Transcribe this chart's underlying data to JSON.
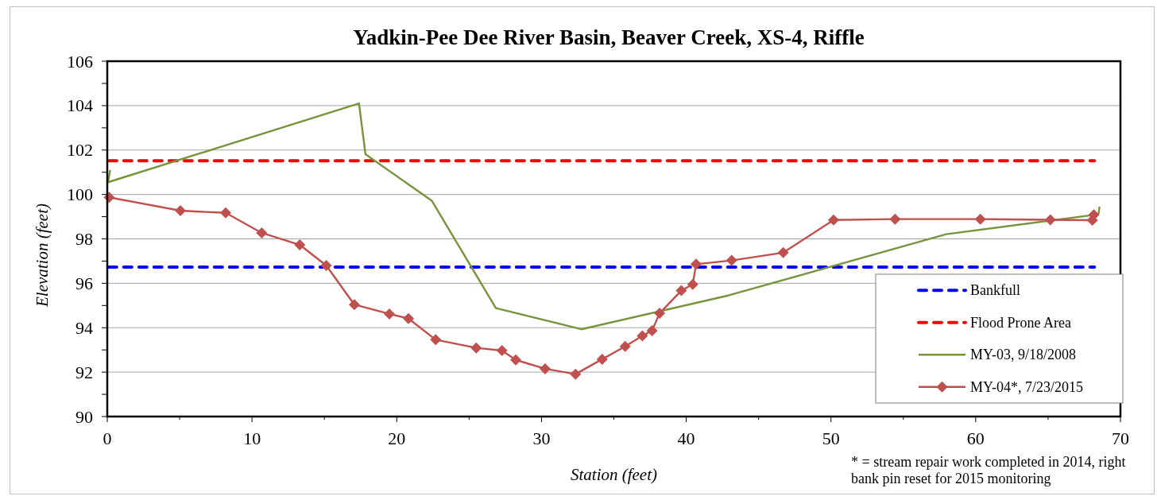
{
  "chart_data": {
    "type": "line",
    "title": "Yadkin-Pee Dee River Basin, Beaver Creek, XS-4, Riffle",
    "xlabel": "Station (feet)",
    "ylabel": "Elevation (feet)",
    "xlim": [
      0,
      70
    ],
    "xticks": [
      0,
      {
        "value": 5,
        "label": null
      },
      10,
      {
        "value": 15,
        "label": null
      },
      20,
      {
        "value": 25,
        "label": null
      },
      30,
      {
        "value": 35,
        "label": null
      },
      40,
      {
        "value": 45,
        "label": null
      },
      50,
      {
        "value": 55,
        "label": null
      },
      60,
      {
        "value": 65,
        "label": null
      },
      70
    ],
    "ylim": [
      90,
      106
    ],
    "yticks": [
      90,
      {
        "value": 91,
        "label": null
      },
      92,
      {
        "value": 93,
        "label": null
      },
      94,
      {
        "value": 95,
        "label": null
      },
      96,
      {
        "value": 97,
        "label": null
      },
      98,
      {
        "value": 99,
        "label": null
      },
      100,
      {
        "value": 101,
        "label": null
      },
      102,
      {
        "value": 103,
        "label": null
      },
      104,
      {
        "value": 105,
        "label": null
      },
      106
    ],
    "grid": "y",
    "legend": "bottom right",
    "annotations": [
      "* = stream repair work completed in 2014, right bank pin reset for 2015 monitoring"
    ],
    "series": [
      {
        "name": "Bankfull",
        "color": "#0000ff",
        "line_style": "dashed",
        "marker": "none",
        "x": [
          0.1,
          68.2
        ],
        "values": [
          96.73,
          96.73
        ]
      },
      {
        "name": "Flood Prone Area",
        "color": "#ff0000",
        "line_style": "dashed",
        "marker": "none",
        "x": [
          0.1,
          68.2
        ],
        "values": [
          101.52,
          101.52
        ]
      },
      {
        "name": "MY-03, 9/18/2008",
        "color": "#77933c",
        "line_style": "solid",
        "marker": "none",
        "x": [
          0.2,
          0.05,
          17.39,
          17.84,
          22.42,
          26.85,
          32.76,
          42.96,
          57.96,
          68.16,
          68.5,
          68.55
        ],
        "values": [
          101.1,
          100.55,
          104.1,
          101.81,
          99.72,
          94.88,
          93.93,
          95.46,
          98.21,
          99.08,
          99.15,
          99.45
        ]
      },
      {
        "name": "MY-04*, 7/23/2015",
        "color": "#c0504d",
        "line_style": "solid",
        "marker": "diamond",
        "x": [
          0.13,
          5.05,
          8.18,
          10.67,
          13.3,
          15.13,
          17.07,
          19.49,
          20.81,
          22.69,
          25.49,
          27.27,
          28.22,
          30.25,
          32.35,
          34.19,
          35.78,
          36.97,
          37.64,
          38.16,
          39.66,
          40.45,
          40.68,
          43.14,
          46.7,
          50.18,
          54.43,
          60.32,
          65.16,
          68.06,
          68.16
        ],
        "values": [
          99.87,
          99.27,
          99.17,
          98.27,
          97.73,
          96.8,
          95.04,
          94.62,
          94.41,
          93.46,
          93.09,
          92.97,
          92.55,
          92.15,
          91.91,
          92.58,
          93.16,
          93.63,
          93.87,
          94.65,
          95.67,
          95.95,
          96.86,
          97.03,
          97.38,
          98.85,
          98.89,
          98.89,
          98.86,
          98.84,
          99.08
        ]
      }
    ]
  }
}
